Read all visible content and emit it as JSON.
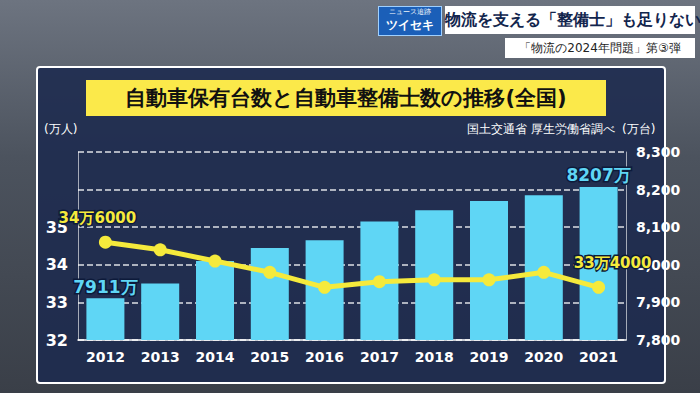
{
  "header": {
    "brand_top": "ニュース追跡",
    "brand": "ツイセキ",
    "headline": "物流を支える「整備士」も足りない",
    "subheadline": "「物流の2024年問題」第③弾"
  },
  "chart_data": {
    "type": "bar",
    "title": "自動車保有台数と自動車整備士数の推移(全国)",
    "annotations": [
      "国土交通省 厚生労働省調べ"
    ],
    "y_label": "(万人)",
    "y2_label": "(万台)",
    "categories": [
      "2012",
      "2013",
      "2014",
      "2015",
      "2016",
      "2017",
      "2018",
      "2019",
      "2020",
      "2021"
    ],
    "series": [
      {
        "type": "bar",
        "axis": "y2",
        "color": "#5fd6f5",
        "data_labels": true,
        "values": [
          7911,
          7950,
          8010,
          8045,
          8065,
          8115,
          8145,
          8170,
          8185,
          8207
        ],
        "value_labels": [
          "7911万",
          null,
          null,
          null,
          null,
          null,
          null,
          null,
          null,
          "8207万"
        ]
      },
      {
        "type": "line",
        "axis": "y",
        "color": "#f5ea3c",
        "marker": "circle",
        "data_labels": true,
        "values": [
          34.6,
          34.4,
          34.1,
          33.8,
          33.4,
          33.55,
          33.6,
          33.6,
          33.8,
          33.4
        ],
        "value_labels": [
          "34万6000",
          null,
          null,
          null,
          null,
          null,
          null,
          null,
          null,
          "33万4000"
        ]
      }
    ],
    "ylim": [
      32,
      37
    ],
    "yticks": [
      32,
      33,
      34,
      35
    ],
    "y2lim": [
      7800,
      8300
    ],
    "y2ticks": [
      7800,
      7900,
      8000,
      8100,
      8200,
      8300
    ],
    "grid": true
  }
}
